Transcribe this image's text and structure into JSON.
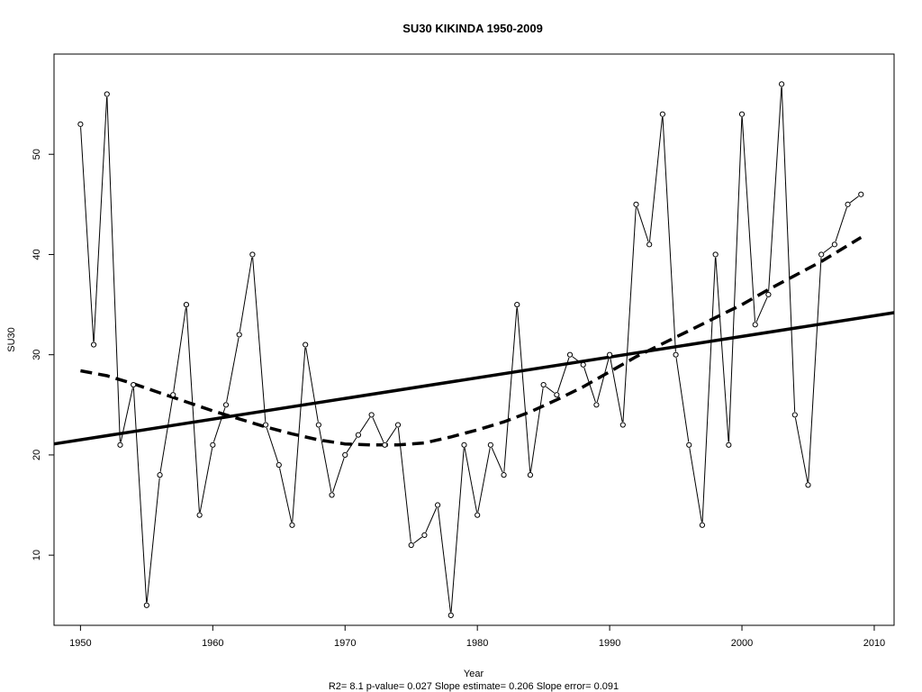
{
  "chart_data": {
    "type": "line",
    "title": "SU30   KIKINDA 1950-2009",
    "xlabel": "Year",
    "ylabel": "SU30",
    "footer": "R2= 8.1  p-value= 0.027  Slope estimate= 0.206  Slope error= 0.091",
    "xlim": [
      1948,
      2011.5
    ],
    "ylim": [
      3,
      60
    ],
    "x_ticks": [
      1950,
      1960,
      1970,
      1980,
      1990,
      2000,
      2010
    ],
    "y_ticks": [
      10,
      20,
      30,
      40,
      50
    ],
    "grid": false,
    "legend": "none",
    "series": [
      {
        "style": "line-with-open-circles",
        "x": [
          1950,
          1951,
          1952,
          1953,
          1954,
          1955,
          1956,
          1957,
          1958,
          1959,
          1960,
          1961,
          1962,
          1963,
          1964,
          1965,
          1966,
          1967,
          1968,
          1969,
          1970,
          1971,
          1972,
          1973,
          1974,
          1975,
          1976,
          1977,
          1978,
          1979,
          1980,
          1981,
          1982,
          1983,
          1984,
          1985,
          1986,
          1987,
          1988,
          1989,
          1990,
          1991,
          1992,
          1993,
          1994,
          1995,
          1996,
          1997,
          1998,
          1999,
          2000,
          2001,
          2002,
          2003,
          2004,
          2005,
          2006,
          2007,
          2008,
          2009
        ],
        "values": [
          53,
          31,
          56,
          21,
          27,
          5,
          18,
          26,
          35,
          14,
          21,
          25,
          32,
          40,
          23,
          19,
          13,
          31,
          23,
          16,
          20,
          22,
          24,
          21,
          23,
          11,
          12,
          15,
          4,
          21,
          14,
          21,
          18,
          35,
          18,
          27,
          26,
          30,
          29,
          25,
          30,
          23,
          45,
          41,
          54,
          30,
          21,
          13,
          40,
          21,
          54,
          33,
          36,
          57,
          24,
          17,
          40,
          41,
          45,
          46
        ]
      },
      {
        "style": "linear-trend-solid",
        "x": [
          1948,
          2011.5
        ],
        "values": [
          21.1,
          34.2
        ]
      },
      {
        "style": "smooth-trend-dashed",
        "x": [
          1950,
          1952,
          1954,
          1956,
          1958,
          1960,
          1962,
          1964,
          1966,
          1968,
          1970,
          1972,
          1974,
          1976,
          1978,
          1980,
          1982,
          1984,
          1986,
          1988,
          1990,
          1992,
          1994,
          1996,
          1998,
          2000,
          2002,
          2004,
          2006,
          2008,
          2009
        ],
        "values": [
          28.4,
          27.9,
          27.1,
          26.2,
          25.3,
          24.4,
          23.6,
          22.8,
          22.1,
          21.5,
          21.1,
          21.0,
          21.0,
          21.2,
          21.8,
          22.5,
          23.3,
          24.3,
          25.5,
          26.8,
          28.3,
          29.8,
          31.1,
          32.4,
          33.7,
          35.0,
          36.5,
          37.9,
          39.3,
          40.9,
          41.7
        ]
      }
    ]
  }
}
